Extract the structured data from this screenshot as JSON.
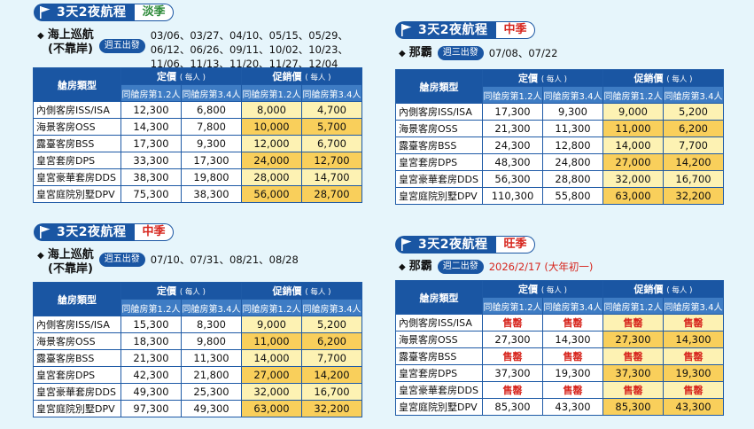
{
  "labels": {
    "cabin_type": "艙房類型",
    "fixed_price": "定價",
    "promo_price": "促銷價",
    "per_person": "( 每人 )",
    "occ_12": "同艙房第1.2人",
    "occ_34": "同艙房第3.4人"
  },
  "panels": [
    {
      "id": "tl",
      "title": "3天2夜航程",
      "season": "淡季",
      "route_line1": "海上巡航",
      "route_line2": "(不靠岸)",
      "day_tag": "週五出發",
      "dates_lines": [
        "03/06、03/27、04/10、05/15、05/29、",
        "06/12、06/26、09/11、10/02、10/23、",
        "11/06、11/13、11/20、11/27、12/04"
      ],
      "rows": [
        {
          "cabin": "內側客房ISS/ISA",
          "f12": "12,300",
          "f34": "6,800",
          "p12": "8,000",
          "p34": "4,700"
        },
        {
          "cabin": "海景客房OSS",
          "f12": "14,300",
          "f34": "7,800",
          "p12": "10,000",
          "p34": "5,700"
        },
        {
          "cabin": "露臺客房BSS",
          "f12": "17,300",
          "f34": "9,300",
          "p12": "12,000",
          "p34": "6,700"
        },
        {
          "cabin": "皇宮套房DPS",
          "f12": "33,300",
          "f34": "17,300",
          "p12": "24,000",
          "p34": "12,700"
        },
        {
          "cabin": "皇宮豪華套房DDS",
          "f12": "38,300",
          "f34": "19,800",
          "p12": "28,000",
          "p34": "14,700"
        },
        {
          "cabin": "皇宮庭院別墅DPV",
          "f12": "75,300",
          "f34": "38,300",
          "p12": "56,000",
          "p34": "28,700"
        }
      ]
    },
    {
      "id": "tr",
      "title": "3天2夜航程",
      "season": "中季",
      "route_line1": "那霸",
      "day_tag": "週三出發",
      "dates_lines": [
        "07/08、07/22"
      ],
      "rows": [
        {
          "cabin": "內側客房ISS/ISA",
          "f12": "17,300",
          "f34": "9,300",
          "p12": "9,000",
          "p34": "5,200"
        },
        {
          "cabin": "海景客房OSS",
          "f12": "21,300",
          "f34": "11,300",
          "p12": "11,000",
          "p34": "6,200"
        },
        {
          "cabin": "露臺客房BSS",
          "f12": "24,300",
          "f34": "12,800",
          "p12": "14,000",
          "p34": "7,700"
        },
        {
          "cabin": "皇宮套房DPS",
          "f12": "48,300",
          "f34": "24,800",
          "p12": "27,000",
          "p34": "14,200"
        },
        {
          "cabin": "皇宮豪華套房DDS",
          "f12": "56,300",
          "f34": "28,800",
          "p12": "32,000",
          "p34": "16,700"
        },
        {
          "cabin": "皇宮庭院別墅DPV",
          "f12": "110,300",
          "f34": "55,800",
          "p12": "63,000",
          "p34": "32,200"
        }
      ]
    },
    {
      "id": "bl",
      "title": "3天2夜航程",
      "season": "中季",
      "route_line1": "海上巡航",
      "route_line2": "(不靠岸)",
      "day_tag": "週五出發",
      "dates_lines": [
        "07/10、07/31、08/21、08/28"
      ],
      "rows": [
        {
          "cabin": "內側客房ISS/ISA",
          "f12": "15,300",
          "f34": "8,300",
          "p12": "9,000",
          "p34": "5,200"
        },
        {
          "cabin": "海景客房OSS",
          "f12": "18,300",
          "f34": "9,800",
          "p12": "11,000",
          "p34": "6,200"
        },
        {
          "cabin": "露臺客房BSS",
          "f12": "21,300",
          "f34": "11,300",
          "p12": "14,000",
          "p34": "7,700"
        },
        {
          "cabin": "皇宮套房DPS",
          "f12": "42,300",
          "f34": "21,800",
          "p12": "27,000",
          "p34": "14,200"
        },
        {
          "cabin": "皇宮豪華套房DDS",
          "f12": "49,300",
          "f34": "25,300",
          "p12": "32,000",
          "p34": "16,700"
        },
        {
          "cabin": "皇宮庭院別墅DPV",
          "f12": "97,300",
          "f34": "49,300",
          "p12": "63,000",
          "p34": "32,200"
        }
      ]
    },
    {
      "id": "br",
      "title": "3天2夜航程",
      "season": "旺季",
      "route_line1": "那霸",
      "day_tag": "週二出發",
      "dates_lines": [
        "2026/2/17 (大年初一)"
      ],
      "rows": [
        {
          "cabin": "內側客房ISS/ISA",
          "f12": "售罄",
          "f34": "售罄",
          "p12": "售罄",
          "p34": "售罄"
        },
        {
          "cabin": "海景客房OSS",
          "f12": "27,300",
          "f34": "14,300",
          "p12": "27,300",
          "p34": "14,300"
        },
        {
          "cabin": "露臺客房BSS",
          "f12": "售罄",
          "f34": "售罄",
          "p12": "售罄",
          "p34": "售罄"
        },
        {
          "cabin": "皇宮套房DPS",
          "f12": "37,300",
          "f34": "19,300",
          "p12": "37,300",
          "p34": "19,300"
        },
        {
          "cabin": "皇宮豪華套房DDS",
          "f12": "售罄",
          "f34": "售罄",
          "p12": "售罄",
          "p34": "售罄"
        },
        {
          "cabin": "皇宮庭院別墅DPV",
          "f12": "85,300",
          "f34": "43,300",
          "p12": "85,300",
          "p34": "43,300"
        }
      ]
    }
  ],
  "colors": {
    "header_blue": "#1a56a3",
    "promo_light": "#fdf2b3",
    "promo_dark": "#f9cf5b",
    "season_low": "#2e8b3a",
    "season_other": "#d7261e",
    "sold_out": "#d7261e"
  },
  "icons": {
    "title": "flag-icon",
    "bullet": "diamond-icon"
  }
}
